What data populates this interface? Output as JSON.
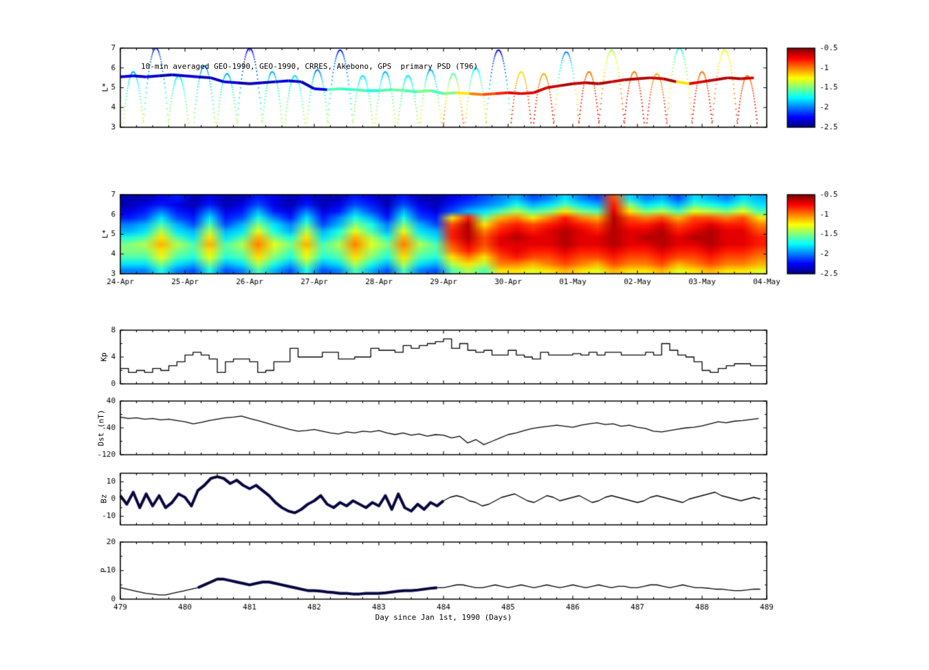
{
  "colormap": {
    "name": "jet",
    "vmin": -2.5,
    "vmax": -0.5
  },
  "colorbar": {
    "ticks": [
      "-0.5",
      "-1",
      "-1.5",
      "-2",
      "-2.5"
    ]
  },
  "xaxis": {
    "label": "Day since Jan 1st, 1990 (Days)",
    "ticks": [
      479,
      480,
      481,
      482,
      483,
      484,
      485,
      486,
      487,
      488,
      489
    ]
  },
  "chart_data": [
    {
      "id": "psd-tracks",
      "type": "scatter",
      "title": "10-min averaged GEO-1990, GEO-1990, CRRES, Akebono, GPS  primary PSD (T96)",
      "ylabel": "L*",
      "xlim": [
        479,
        489
      ],
      "ylim": [
        3,
        7
      ],
      "yticks": [
        3,
        4,
        5,
        6,
        7
      ],
      "geo_track": {
        "x0": 479.0,
        "step": 0.2,
        "L": [
          5.55,
          5.6,
          5.55,
          5.6,
          5.65,
          5.6,
          5.55,
          5.5,
          5.3,
          5.25,
          5.2,
          5.25,
          5.3,
          5.35,
          5.3,
          4.95,
          4.9,
          4.95,
          4.9,
          4.85,
          4.85,
          4.9,
          4.85,
          4.8,
          4.85,
          4.7,
          4.75,
          4.7,
          4.65,
          4.7,
          4.75,
          4.7,
          4.75,
          5.0,
          5.1,
          5.2,
          5.25,
          5.2,
          5.3,
          5.4,
          5.45,
          5.5,
          5.45,
          5.3,
          5.2,
          5.3,
          5.4,
          5.5,
          5.45,
          5.5
        ],
        "v": [
          -2.3,
          -2.35,
          -2.3,
          -2.4,
          -2.35,
          -2.3,
          -2.4,
          -2.35,
          -2.3,
          -2.4,
          -2.35,
          -2.4,
          -2.3,
          -2.35,
          -2.4,
          -2.3,
          -1.6,
          -1.65,
          -1.6,
          -1.7,
          -1.6,
          -1.55,
          -1.6,
          -1.5,
          -1.6,
          -1.5,
          -1.2,
          -1.0,
          -0.9,
          -0.8,
          -0.7,
          -0.7,
          -0.65,
          -0.65,
          -0.6,
          -0.65,
          -0.6,
          -0.6,
          -0.65,
          -0.6,
          -0.6,
          -0.65,
          -0.6,
          -1.2,
          -0.7,
          -0.65,
          -0.6,
          -0.6,
          -0.65,
          -0.6
        ]
      },
      "arcs": [
        [
          479.2,
          0.16,
          5.8,
          -1.25,
          -1.9
        ],
        [
          479.55,
          0.2,
          7.0,
          -1.4,
          -2.2
        ],
        [
          479.9,
          0.16,
          5.6,
          -1.3,
          -1.8
        ],
        [
          480.3,
          0.17,
          6.1,
          -1.35,
          -2.0
        ],
        [
          480.65,
          0.16,
          5.7,
          -1.25,
          -1.9
        ],
        [
          481.0,
          0.2,
          7.0,
          -1.5,
          -2.3
        ],
        [
          481.35,
          0.16,
          5.8,
          -1.3,
          -1.9
        ],
        [
          481.7,
          0.16,
          5.6,
          -1.35,
          -1.8
        ],
        [
          482.05,
          0.17,
          5.9,
          -1.25,
          -2.0
        ],
        [
          482.4,
          0.2,
          6.9,
          -1.45,
          -2.2
        ],
        [
          482.75,
          0.16,
          5.6,
          -1.3,
          -1.8
        ],
        [
          483.1,
          0.16,
          5.8,
          -1.2,
          -1.9
        ],
        [
          483.45,
          0.16,
          5.6,
          -1.35,
          -1.8
        ],
        [
          483.8,
          0.17,
          5.9,
          -1.1,
          -1.9
        ],
        [
          484.15,
          0.16,
          5.7,
          -0.8,
          -1.6
        ],
        [
          484.5,
          0.17,
          6.0,
          -1.0,
          -1.8
        ],
        [
          484.85,
          0.2,
          6.9,
          -1.3,
          -2.3
        ],
        [
          485.2,
          0.16,
          5.8,
          -0.65,
          -1.2
        ],
        [
          485.55,
          0.16,
          5.7,
          -0.6,
          -1.1
        ],
        [
          485.9,
          0.2,
          6.8,
          -0.8,
          -2.0
        ],
        [
          486.25,
          0.16,
          5.8,
          -0.6,
          -1.0
        ],
        [
          486.6,
          0.2,
          6.9,
          -0.7,
          -1.4
        ],
        [
          486.95,
          0.16,
          5.8,
          -0.6,
          -1.0
        ],
        [
          487.3,
          0.16,
          5.7,
          -0.65,
          -1.1
        ],
        [
          487.65,
          0.2,
          7.0,
          -0.9,
          -1.7
        ],
        [
          488.0,
          0.16,
          5.8,
          -0.6,
          -1.0
        ],
        [
          488.35,
          0.2,
          6.9,
          -0.8,
          -1.3
        ],
        [
          488.7,
          0.16,
          5.6,
          -0.6,
          -1.0
        ]
      ]
    },
    {
      "id": "psd-map",
      "type": "heatmap",
      "ylabel": "L*",
      "xlim": [
        479,
        489
      ],
      "ylim": [
        3,
        7
      ],
      "yticks": [
        3,
        4,
        5,
        6,
        7
      ],
      "xtick_labels": [
        "24-Apr",
        "25-Apr",
        "26-Apr",
        "27-Apr",
        "28-Apr",
        "29-Apr",
        "30-Apr",
        "01-May",
        "02-May",
        "03-May",
        "04-May"
      ],
      "grid": [
        [
          -2.4,
          -2.4,
          -2.3,
          -2.2,
          -2.4,
          -2.3,
          -2.4,
          -2.4,
          -2.2,
          -2.3,
          -2.4,
          -2.3,
          -2.4,
          -2.4,
          -2.2,
          -2.3,
          -2.4,
          -2.2,
          -2.4,
          -2.4,
          -2.3,
          -2.2,
          -2.1,
          -2.0,
          -1.9,
          -2.1,
          -2.0,
          -1.8,
          -2.0,
          -2.1,
          -0.9,
          -1.8,
          -2.0,
          -1.9,
          -2.1,
          -1.8,
          -1.9,
          -2.0,
          -1.8,
          -1.9
        ],
        [
          -2.4,
          -2.3,
          -2.2,
          -2.3,
          -2.4,
          -2.2,
          -2.4,
          -2.3,
          -2.1,
          -2.3,
          -2.4,
          -2.2,
          -2.4,
          -2.3,
          -2.1,
          -2.2,
          -2.4,
          -2.1,
          -2.3,
          -2.4,
          -2.2,
          -2.1,
          -2.0,
          -1.9,
          -1.7,
          -1.9,
          -1.8,
          -1.6,
          -1.8,
          -1.9,
          -0.8,
          -1.5,
          -1.8,
          -1.7,
          -1.9,
          -1.6,
          -1.7,
          -1.8,
          -1.6,
          -1.8
        ],
        [
          -2.3,
          -2.2,
          -2.0,
          -2.2,
          -2.3,
          -2.0,
          -2.3,
          -2.2,
          -1.9,
          -2.2,
          -2.3,
          -2.0,
          -2.3,
          -2.2,
          -1.9,
          -2.1,
          -2.3,
          -1.9,
          -2.2,
          -2.3,
          -2.1,
          -1.9,
          -1.8,
          -1.6,
          -1.4,
          -1.6,
          -1.5,
          -1.2,
          -1.5,
          -1.6,
          -0.7,
          -1.2,
          -1.5,
          -1.4,
          -1.6,
          -1.3,
          -1.4,
          -1.5,
          -1.3,
          -1.6
        ],
        [
          -2.2,
          -2.1,
          -1.8,
          -2.1,
          -2.2,
          -1.8,
          -2.2,
          -2.1,
          -1.7,
          -2.0,
          -2.2,
          -1.8,
          -2.2,
          -2.0,
          -1.7,
          -1.9,
          -2.2,
          -1.7,
          -2.1,
          -2.2,
          -1.2,
          -0.8,
          -1.5,
          -1.1,
          -1.0,
          -1.2,
          -1.0,
          -0.8,
          -1.0,
          -1.1,
          -0.6,
          -0.9,
          -1.0,
          -0.9,
          -1.1,
          -0.9,
          -0.9,
          -1.0,
          -0.9,
          -1.2
        ],
        [
          -2.0,
          -1.9,
          -1.6,
          -1.9,
          -2.1,
          -1.6,
          -2.1,
          -1.9,
          -1.5,
          -1.8,
          -2.0,
          -1.6,
          -2.1,
          -1.9,
          -1.5,
          -1.7,
          -2.0,
          -1.5,
          -1.9,
          -2.1,
          -0.9,
          -0.6,
          -1.2,
          -0.9,
          -0.8,
          -0.9,
          -0.8,
          -0.7,
          -0.8,
          -0.9,
          -0.6,
          -0.8,
          -0.8,
          -0.7,
          -0.9,
          -0.8,
          -0.7,
          -0.8,
          -0.8,
          -1.0
        ],
        [
          -1.9,
          -1.8,
          -1.4,
          -1.8,
          -1.9,
          -1.4,
          -1.9,
          -1.8,
          -1.3,
          -1.7,
          -1.9,
          -1.4,
          -1.9,
          -1.7,
          -1.3,
          -1.6,
          -1.9,
          -1.3,
          -1.8,
          -1.9,
          -0.8,
          -0.6,
          -1.0,
          -0.8,
          -0.7,
          -0.8,
          -0.7,
          -0.6,
          -0.7,
          -0.8,
          -0.6,
          -0.7,
          -0.7,
          -0.6,
          -0.8,
          -0.7,
          -0.6,
          -0.7,
          -0.7,
          -0.9
        ],
        [
          -1.7,
          -1.6,
          -1.2,
          -1.6,
          -1.8,
          -1.2,
          -1.8,
          -1.6,
          -1.1,
          -1.5,
          -1.7,
          -1.2,
          -1.8,
          -1.6,
          -1.1,
          -1.4,
          -1.7,
          -1.1,
          -1.6,
          -1.8,
          -0.8,
          -0.6,
          -0.9,
          -0.7,
          -0.6,
          -0.7,
          -0.7,
          -0.6,
          -0.7,
          -0.7,
          -0.6,
          -0.7,
          -0.6,
          -0.6,
          -0.7,
          -0.6,
          -0.6,
          -0.7,
          -0.7,
          -0.8
        ],
        [
          -1.5,
          -1.4,
          -1.1,
          -1.4,
          -1.6,
          -1.1,
          -1.6,
          -1.4,
          -1.0,
          -1.3,
          -1.5,
          -1.1,
          -1.6,
          -1.4,
          -1.0,
          -1.3,
          -1.5,
          -1.0,
          -1.4,
          -1.6,
          -0.9,
          -0.7,
          -0.9,
          -0.7,
          -0.7,
          -0.7,
          -0.7,
          -0.6,
          -0.7,
          -0.7,
          -0.6,
          -0.7,
          -0.7,
          -0.6,
          -0.7,
          -0.7,
          -0.6,
          -0.7,
          -0.7,
          -0.8
        ],
        [
          -1.5,
          -1.5,
          -1.2,
          -1.5,
          -1.6,
          -1.2,
          -1.6,
          -1.5,
          -1.1,
          -1.4,
          -1.6,
          -1.2,
          -1.6,
          -1.5,
          -1.1,
          -1.4,
          -1.6,
          -1.1,
          -1.5,
          -1.6,
          -1.0,
          -0.8,
          -1.0,
          -0.8,
          -0.7,
          -0.8,
          -0.8,
          -0.7,
          -0.8,
          -0.8,
          -0.7,
          -0.8,
          -0.8,
          -0.7,
          -0.8,
          -0.8,
          -0.7,
          -0.8,
          -0.8,
          -0.9
        ],
        [
          -1.6,
          -1.6,
          -1.3,
          -1.6,
          -1.7,
          -1.3,
          -1.7,
          -1.6,
          -1.2,
          -1.5,
          -1.7,
          -1.3,
          -1.7,
          -1.6,
          -1.2,
          -1.5,
          -1.7,
          -1.2,
          -1.6,
          -1.7,
          -1.2,
          -1.0,
          -1.2,
          -0.9,
          -0.8,
          -0.9,
          -0.9,
          -0.8,
          -0.9,
          -0.9,
          -0.8,
          -0.9,
          -0.9,
          -0.8,
          -0.9,
          -0.9,
          -0.8,
          -0.9,
          -0.9,
          -1.0
        ],
        [
          -1.8,
          -1.8,
          -1.5,
          -1.8,
          -1.9,
          -1.5,
          -1.9,
          -1.8,
          -1.4,
          -1.7,
          -1.9,
          -1.5,
          -1.9,
          -1.8,
          -1.4,
          -1.7,
          -1.9,
          -1.4,
          -1.8,
          -1.9,
          -1.4,
          -1.2,
          -1.4,
          -1.0,
          -1.0,
          -1.1,
          -1.0,
          -0.9,
          -1.0,
          -1.1,
          -0.9,
          -1.0,
          -1.0,
          -0.9,
          -1.1,
          -1.0,
          -0.9,
          -1.0,
          -1.0,
          -1.1
        ],
        [
          -2.0,
          -2.0,
          -1.7,
          -2.0,
          -2.1,
          -1.7,
          -2.1,
          -2.0,
          -1.6,
          -1.9,
          -2.1,
          -1.7,
          -2.1,
          -2.0,
          -1.6,
          -1.9,
          -2.1,
          -1.6,
          -2.0,
          -2.1,
          -1.6,
          -1.4,
          -1.6,
          -1.2,
          -1.2,
          -1.3,
          -1.2,
          -1.1,
          -1.2,
          -1.3,
          -1.1,
          -1.2,
          -1.2,
          -1.1,
          -1.3,
          -1.2,
          -1.1,
          -1.2,
          -1.2,
          -1.3
        ]
      ]
    },
    {
      "id": "kp",
      "type": "line",
      "style": "steps",
      "ylabel": "Kp",
      "ylim": [
        0,
        8
      ],
      "yticks": [
        0,
        4,
        8
      ],
      "yminor": [
        2,
        6
      ],
      "x0": 479.0,
      "step": 0.125,
      "values": [
        2.3,
        1.7,
        2.0,
        1.7,
        2.3,
        2.0,
        2.7,
        3.3,
        4.3,
        4.7,
        4.3,
        3.7,
        1.7,
        3.3,
        3.7,
        3.7,
        3.3,
        1.7,
        2.0,
        3.3,
        3.3,
        5.3,
        4.0,
        4.0,
        4.0,
        4.7,
        4.7,
        3.7,
        3.7,
        4.0,
        4.0,
        5.3,
        5.0,
        5.0,
        4.7,
        5.7,
        5.3,
        5.7,
        6.0,
        6.3,
        6.7,
        5.3,
        6.0,
        5.0,
        4.7,
        5.0,
        4.3,
        4.3,
        5.0,
        4.3,
        4.0,
        3.7,
        4.7,
        4.3,
        4.3,
        4.3,
        4.5,
        4.3,
        4.7,
        4.3,
        4.7,
        4.7,
        4.3,
        4.3,
        4.3,
        4.7,
        4.3,
        6.0,
        5.0,
        4.3,
        4.0,
        3.3,
        2.0,
        1.7,
        2.3,
        2.7,
        3.0,
        3.0,
        2.7,
        2.7
      ]
    },
    {
      "id": "dst",
      "type": "line",
      "ylabel": "Dst (nT)",
      "ylim": [
        -120,
        40
      ],
      "yticks": [
        40,
        -40,
        -120
      ],
      "yminor": [
        0,
        -80
      ],
      "x0": 479.0,
      "step": 0.125,
      "values": [
        -8,
        -12,
        -10,
        -14,
        -12,
        -16,
        -14,
        -18,
        -22,
        -28,
        -24,
        -18,
        -14,
        -10,
        -8,
        -5,
        -12,
        -18,
        -25,
        -32,
        -38,
        -45,
        -50,
        -48,
        -45,
        -50,
        -55,
        -58,
        -52,
        -55,
        -50,
        -52,
        -48,
        -55,
        -60,
        -55,
        -62,
        -58,
        -65,
        -60,
        -62,
        -70,
        -65,
        -85,
        -75,
        -90,
        -80,
        -70,
        -60,
        -55,
        -48,
        -42,
        -38,
        -35,
        -32,
        -35,
        -38,
        -32,
        -28,
        -25,
        -30,
        -28,
        -35,
        -32,
        -38,
        -42,
        -50,
        -52,
        -48,
        -44,
        -40,
        -38,
        -34,
        -28,
        -22,
        -25,
        -20,
        -18,
        -15,
        -12
      ]
    },
    {
      "id": "bz",
      "type": "line",
      "ylabel": "Bz",
      "ylim": [
        -15,
        15
      ],
      "yticks": [
        10,
        0,
        -10
      ],
      "yminor": [
        5,
        -5
      ],
      "overlay": [
        479.0,
        484.0
      ],
      "x0": 479.0,
      "step": 0.1,
      "values": [
        2,
        -3,
        4,
        -5,
        3,
        -4,
        2,
        -5,
        -2,
        3,
        1,
        -4,
        5,
        8,
        12,
        13,
        12,
        9,
        11,
        8,
        6,
        8,
        5,
        2,
        -2,
        -5,
        -7,
        -8,
        -6,
        -3,
        -1,
        2,
        -3,
        -5,
        -2,
        -4,
        -1,
        -3,
        -5,
        -2,
        -4,
        2,
        -6,
        3,
        -5,
        -7,
        -3,
        -6,
        -2,
        -4,
        -1,
        1,
        2,
        1,
        -1,
        -2,
        -4,
        -3,
        -1,
        1,
        2,
        3,
        1,
        -1,
        -2,
        0,
        2,
        1,
        -1,
        0,
        1,
        2,
        0,
        -2,
        -1,
        1,
        2,
        1,
        0,
        -1,
        -2,
        -1,
        1,
        2,
        1,
        0,
        -1,
        -2,
        0,
        1,
        2,
        3,
        4,
        2,
        1,
        0,
        -1,
        0,
        1,
        0
      ]
    },
    {
      "id": "p",
      "type": "line",
      "ylabel": "P",
      "ylim": [
        0,
        20
      ],
      "yticks": [
        0,
        10,
        20
      ],
      "yminor": [
        5,
        15
      ],
      "overlay": [
        480.2,
        483.95
      ],
      "x0": 479.0,
      "step": 0.1,
      "values": [
        4,
        3.5,
        3,
        2.5,
        2,
        1.8,
        1.5,
        1.5,
        2,
        2.5,
        3,
        3.5,
        4,
        5,
        6,
        7,
        7,
        6.5,
        6,
        5.5,
        5,
        5.5,
        6,
        6,
        5.5,
        5,
        4.5,
        4,
        3.5,
        3,
        3,
        2.8,
        2.5,
        2.3,
        2,
        2,
        1.8,
        1.8,
        2,
        2,
        2,
        2.2,
        2.5,
        2.8,
        3,
        3,
        3.2,
        3.5,
        3.8,
        4,
        4,
        4.5,
        5,
        5,
        4.5,
        4,
        4,
        4.5,
        5,
        4.5,
        4,
        4.5,
        5,
        4.5,
        4,
        4.5,
        5,
        4.5,
        4,
        4.5,
        5,
        4.5,
        4,
        4.5,
        5,
        4.5,
        4,
        4.5,
        4.5,
        4,
        4,
        4.5,
        5,
        5,
        4.5,
        4,
        4.5,
        5,
        4.5,
        4,
        4,
        3.8,
        3.5,
        3.5,
        3.2,
        3,
        3,
        3.2,
        3.5,
        3.5
      ]
    }
  ]
}
